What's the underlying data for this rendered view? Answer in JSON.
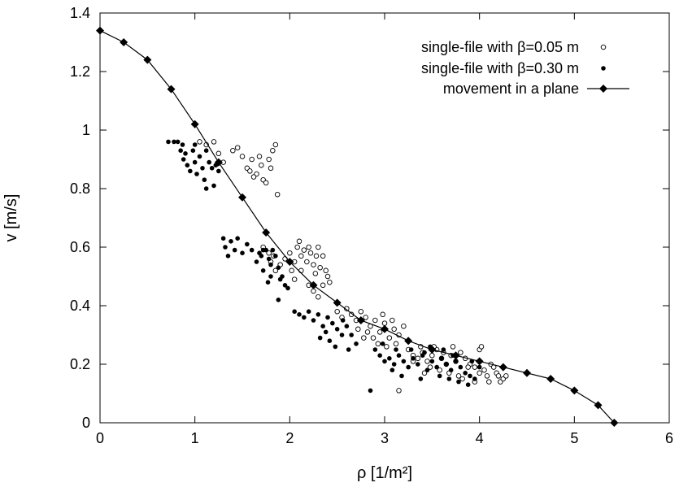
{
  "chart_data": {
    "type": "scatter",
    "title": "",
    "xlabel": "ρ [1/m²]",
    "ylabel": "v [m/s]",
    "xlim": [
      0,
      6
    ],
    "ylim": [
      0,
      1.4
    ],
    "xticks": [
      "0",
      "1",
      "2",
      "3",
      "4",
      "5",
      "6"
    ],
    "yticks": [
      "0",
      "0.2",
      "0.4",
      "0.6",
      "0.8",
      "1",
      "1.2",
      "1.4"
    ],
    "grid": false,
    "legend_position": "top-right",
    "series": [
      {
        "name": "single-file with β=0.05 m",
        "marker": "open-circle",
        "points": [
          [
            1.05,
            0.96
          ],
          [
            1.12,
            0.95
          ],
          [
            1.2,
            0.96
          ],
          [
            1.25,
            0.92
          ],
          [
            1.3,
            0.89
          ],
          [
            1.4,
            0.93
          ],
          [
            1.45,
            0.94
          ],
          [
            1.5,
            0.91
          ],
          [
            1.55,
            0.87
          ],
          [
            1.6,
            0.9
          ],
          [
            1.65,
            0.85
          ],
          [
            1.68,
            0.91
          ],
          [
            1.7,
            0.88
          ],
          [
            1.72,
            0.83
          ],
          [
            1.75,
            0.82
          ],
          [
            1.78,
            0.9
          ],
          [
            1.8,
            0.87
          ],
          [
            1.82,
            0.93
          ],
          [
            1.85,
            0.95
          ],
          [
            1.87,
            0.78
          ],
          [
            1.58,
            0.86
          ],
          [
            1.62,
            0.84
          ],
          [
            1.72,
            0.6
          ],
          [
            1.78,
            0.58
          ],
          [
            1.8,
            0.55
          ],
          [
            1.83,
            0.57
          ],
          [
            1.85,
            0.52
          ],
          [
            1.9,
            0.54
          ],
          [
            1.95,
            0.56
          ],
          [
            2.0,
            0.58
          ],
          [
            2.02,
            0.52
          ],
          [
            2.05,
            0.55
          ],
          [
            2.08,
            0.6
          ],
          [
            2.1,
            0.62
          ],
          [
            2.12,
            0.57
          ],
          [
            2.15,
            0.59
          ],
          [
            2.18,
            0.55
          ],
          [
            2.2,
            0.6
          ],
          [
            2.22,
            0.58
          ],
          [
            2.25,
            0.54
          ],
          [
            2.28,
            0.57
          ],
          [
            2.3,
            0.6
          ],
          [
            2.32,
            0.53
          ],
          [
            2.35,
            0.57
          ],
          [
            2.38,
            0.52
          ],
          [
            2.4,
            0.5
          ],
          [
            2.42,
            0.48
          ],
          [
            2.2,
            0.47
          ],
          [
            2.25,
            0.45
          ],
          [
            2.3,
            0.43
          ],
          [
            2.05,
            0.49
          ],
          [
            2.35,
            0.47
          ],
          [
            2.12,
            0.52
          ],
          [
            2.27,
            0.51
          ],
          [
            2.5,
            0.38
          ],
          [
            2.55,
            0.36
          ],
          [
            2.6,
            0.39
          ],
          [
            2.65,
            0.37
          ],
          [
            2.7,
            0.35
          ],
          [
            2.75,
            0.38
          ],
          [
            2.8,
            0.36
          ],
          [
            2.85,
            0.33
          ],
          [
            2.9,
            0.35
          ],
          [
            2.95,
            0.31
          ],
          [
            3.0,
            0.34
          ],
          [
            3.05,
            0.29
          ],
          [
            3.1,
            0.32
          ],
          [
            3.15,
            0.3
          ],
          [
            3.2,
            0.33
          ],
          [
            2.88,
            0.29
          ],
          [
            2.93,
            0.27
          ],
          [
            2.98,
            0.37
          ],
          [
            3.02,
            0.26
          ],
          [
            3.08,
            0.35
          ],
          [
            3.12,
            0.27
          ],
          [
            2.78,
            0.29
          ],
          [
            2.82,
            0.31
          ],
          [
            2.72,
            0.32
          ],
          [
            3.25,
            0.25
          ],
          [
            3.3,
            0.23
          ],
          [
            3.35,
            0.22
          ],
          [
            3.4,
            0.24
          ],
          [
            3.45,
            0.21
          ],
          [
            3.5,
            0.23
          ],
          [
            3.55,
            0.25
          ],
          [
            3.6,
            0.22
          ],
          [
            3.65,
            0.2
          ],
          [
            3.7,
            0.23
          ],
          [
            3.75,
            0.21
          ],
          [
            3.8,
            0.24
          ],
          [
            3.85,
            0.22
          ],
          [
            3.9,
            0.2
          ],
          [
            3.95,
            0.19
          ],
          [
            3.38,
            0.26
          ],
          [
            3.48,
            0.19
          ],
          [
            3.58,
            0.18
          ],
          [
            3.68,
            0.17
          ],
          [
            3.78,
            0.16
          ],
          [
            3.88,
            0.19
          ],
          [
            3.42,
            0.17
          ],
          [
            3.52,
            0.26
          ],
          [
            3.62,
            0.24
          ],
          [
            3.72,
            0.26
          ],
          [
            4.0,
            0.25
          ],
          [
            4.02,
            0.26
          ],
          [
            4.05,
            0.18
          ],
          [
            4.08,
            0.16
          ],
          [
            4.1,
            0.14
          ],
          [
            4.12,
            0.2
          ],
          [
            4.15,
            0.19
          ],
          [
            4.18,
            0.17
          ],
          [
            4.2,
            0.16
          ],
          [
            4.22,
            0.14
          ],
          [
            4.25,
            0.15
          ],
          [
            4.28,
            0.16
          ],
          [
            3.95,
            0.14
          ],
          [
            4.0,
            0.17
          ],
          [
            3.15,
            0.11
          ],
          [
            3.3,
            0.21
          ],
          [
            3.82,
            0.15
          ]
        ]
      },
      {
        "name": "single-file with β=0.30 m",
        "marker": "filled-circle",
        "points": [
          [
            0.72,
            0.96
          ],
          [
            0.78,
            0.96
          ],
          [
            0.82,
            0.96
          ],
          [
            0.85,
            0.93
          ],
          [
            0.88,
            0.9
          ],
          [
            0.9,
            0.92
          ],
          [
            0.92,
            0.88
          ],
          [
            0.95,
            0.86
          ],
          [
            0.98,
            0.93
          ],
          [
            1.0,
            0.89
          ],
          [
            1.02,
            0.85
          ],
          [
            1.05,
            0.91
          ],
          [
            1.08,
            0.87
          ],
          [
            1.1,
            0.83
          ],
          [
            1.12,
            0.93
          ],
          [
            1.15,
            0.89
          ],
          [
            1.18,
            0.87
          ],
          [
            1.2,
            0.81
          ],
          [
            1.22,
            0.88
          ],
          [
            1.25,
            0.86
          ],
          [
            0.87,
            0.95
          ],
          [
            1.0,
            0.95
          ],
          [
            1.12,
            0.8
          ],
          [
            1.3,
            0.63
          ],
          [
            1.32,
            0.6
          ],
          [
            1.35,
            0.57
          ],
          [
            1.38,
            0.62
          ],
          [
            1.42,
            0.59
          ],
          [
            1.45,
            0.63
          ],
          [
            1.5,
            0.58
          ],
          [
            1.55,
            0.61
          ],
          [
            1.6,
            0.59
          ],
          [
            1.65,
            0.55
          ],
          [
            1.7,
            0.57
          ],
          [
            1.72,
            0.52
          ],
          [
            1.75,
            0.59
          ],
          [
            1.78,
            0.56
          ],
          [
            1.8,
            0.54
          ],
          [
            1.82,
            0.59
          ],
          [
            1.85,
            0.57
          ],
          [
            1.88,
            0.53
          ],
          [
            1.9,
            0.49
          ],
          [
            1.92,
            0.5
          ],
          [
            1.95,
            0.47
          ],
          [
            1.98,
            0.46
          ],
          [
            1.88,
            0.42
          ],
          [
            1.8,
            0.5
          ],
          [
            1.72,
            0.59
          ],
          [
            1.77,
            0.48
          ],
          [
            1.68,
            0.58
          ],
          [
            2.05,
            0.38
          ],
          [
            2.1,
            0.37
          ],
          [
            2.15,
            0.36
          ],
          [
            2.2,
            0.38
          ],
          [
            2.25,
            0.35
          ],
          [
            2.3,
            0.37
          ],
          [
            2.35,
            0.33
          ],
          [
            2.4,
            0.36
          ],
          [
            2.45,
            0.34
          ],
          [
            2.5,
            0.32
          ],
          [
            2.55,
            0.3
          ],
          [
            2.6,
            0.33
          ],
          [
            2.65,
            0.3
          ],
          [
            2.7,
            0.27
          ],
          [
            2.42,
            0.28
          ],
          [
            2.48,
            0.26
          ],
          [
            2.56,
            0.35
          ],
          [
            2.62,
            0.25
          ],
          [
            2.38,
            0.31
          ],
          [
            2.32,
            0.29
          ],
          [
            2.9,
            0.25
          ],
          [
            2.95,
            0.23
          ],
          [
            3.0,
            0.21
          ],
          [
            3.05,
            0.22
          ],
          [
            3.1,
            0.2
          ],
          [
            3.15,
            0.23
          ],
          [
            3.2,
            0.21
          ],
          [
            3.25,
            0.19
          ],
          [
            3.3,
            0.22
          ],
          [
            3.35,
            0.2
          ],
          [
            3.4,
            0.23
          ],
          [
            3.45,
            0.18
          ],
          [
            3.5,
            0.21
          ],
          [
            3.55,
            0.19
          ],
          [
            3.6,
            0.22
          ],
          [
            3.65,
            0.2
          ],
          [
            3.7,
            0.18
          ],
          [
            3.75,
            0.21
          ],
          [
            3.8,
            0.19
          ],
          [
            3.85,
            0.17
          ],
          [
            3.9,
            0.16
          ],
          [
            3.95,
            0.15
          ],
          [
            4.0,
            0.19
          ],
          [
            3.08,
            0.18
          ],
          [
            3.18,
            0.16
          ],
          [
            3.28,
            0.25
          ],
          [
            3.38,
            0.15
          ],
          [
            3.48,
            0.26
          ],
          [
            3.58,
            0.16
          ],
          [
            3.68,
            0.15
          ],
          [
            3.78,
            0.14
          ],
          [
            3.88,
            0.13
          ],
          [
            2.98,
            0.27
          ],
          [
            3.12,
            0.25
          ],
          [
            3.42,
            0.24
          ],
          [
            3.62,
            0.25
          ],
          [
            3.72,
            0.23
          ],
          [
            3.92,
            0.21
          ],
          [
            2.85,
            0.11
          ]
        ]
      },
      {
        "name": "movement in a plane",
        "marker": "filled-diamond-line",
        "points": [
          [
            0.0,
            1.34
          ],
          [
            0.25,
            1.3
          ],
          [
            0.5,
            1.24
          ],
          [
            0.75,
            1.14
          ],
          [
            1.0,
            1.02
          ],
          [
            1.25,
            0.89
          ],
          [
            1.5,
            0.77
          ],
          [
            1.75,
            0.65
          ],
          [
            2.0,
            0.55
          ],
          [
            2.25,
            0.47
          ],
          [
            2.5,
            0.41
          ],
          [
            2.75,
            0.35
          ],
          [
            3.0,
            0.32
          ],
          [
            3.25,
            0.28
          ],
          [
            3.5,
            0.25
          ],
          [
            3.75,
            0.23
          ],
          [
            4.0,
            0.21
          ],
          [
            4.25,
            0.19
          ],
          [
            4.5,
            0.17
          ],
          [
            4.75,
            0.15
          ],
          [
            5.0,
            0.11
          ],
          [
            5.25,
            0.06
          ],
          [
            5.42,
            0.0
          ]
        ]
      }
    ]
  }
}
